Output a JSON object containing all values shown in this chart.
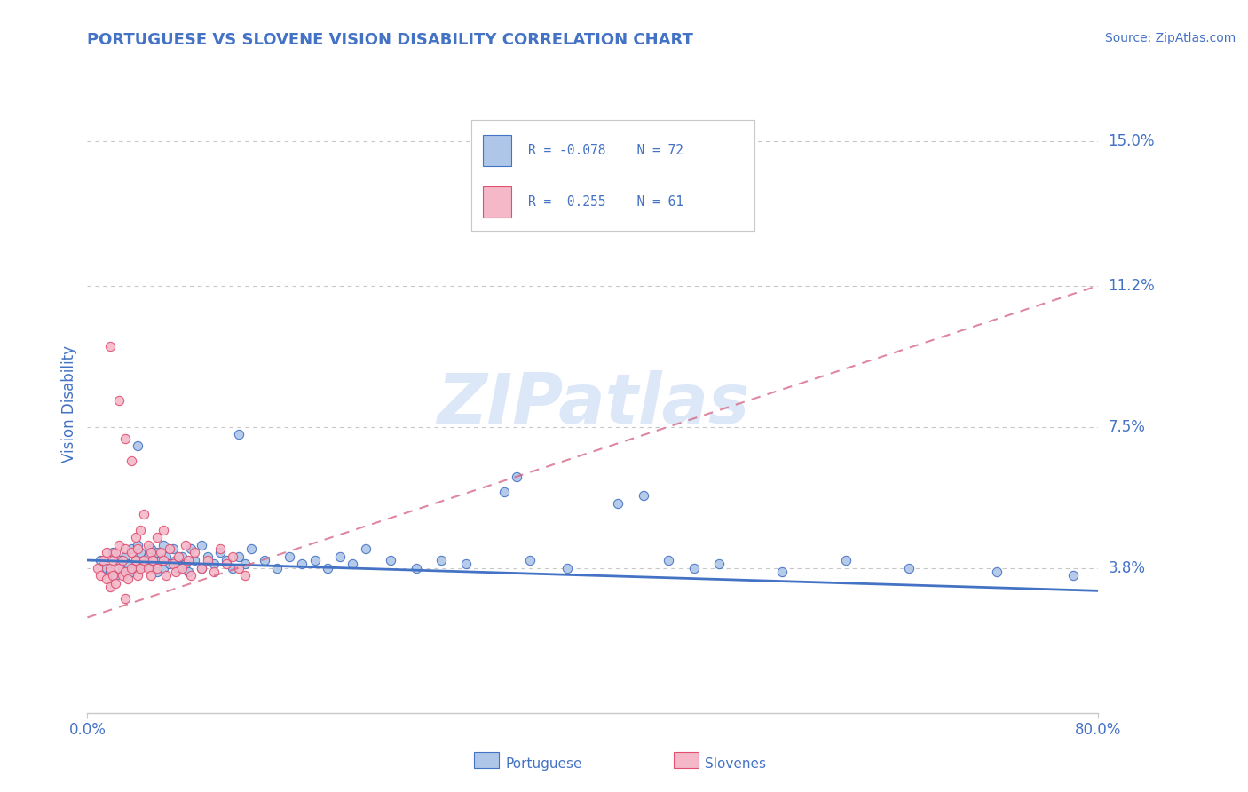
{
  "title": "PORTUGUESE VS SLOVENE VISION DISABILITY CORRELATION CHART",
  "source_text": "Source: ZipAtlas.com",
  "ylabel": "Vision Disability",
  "xlim": [
    0.0,
    0.8
  ],
  "ylim": [
    0.0,
    0.162
  ],
  "xtick_vals": [
    0.0,
    0.8
  ],
  "xtick_labels": [
    "0.0%",
    "80.0%"
  ],
  "ytick_vals": [
    0.038,
    0.075,
    0.112,
    0.15
  ],
  "ytick_labels": [
    "3.8%",
    "7.5%",
    "11.2%",
    "15.0%"
  ],
  "portuguese_fill": "#aec6e8",
  "portuguese_edge": "#4472c4",
  "slovene_fill": "#f4b8c8",
  "slovene_edge": "#e05070",
  "portuguese_line_color": "#4472c4",
  "slovene_line_color": "#d46080",
  "grid_color": "#c8c8c8",
  "title_color": "#4472c4",
  "tick_label_color": "#4472c4",
  "watermark_text": "ZIPatlas",
  "watermark_color": "#dce8f8",
  "legend_R1": "R = -0.078",
  "legend_N1": "N = 72",
  "legend_R2": "R =  0.255",
  "legend_N2": "N = 61",
  "port_trend_x0": 0.0,
  "port_trend_y0": 0.04,
  "port_trend_x1": 0.8,
  "port_trend_y1": 0.032,
  "slov_trend_x0": 0.0,
  "slov_trend_y0": 0.025,
  "slov_trend_x1": 0.8,
  "slov_trend_y1": 0.112,
  "portuguese_scatter": [
    [
      0.01,
      0.04
    ],
    [
      0.015,
      0.038
    ],
    [
      0.018,
      0.037
    ],
    [
      0.02,
      0.042
    ],
    [
      0.022,
      0.036
    ],
    [
      0.025,
      0.04
    ],
    [
      0.028,
      0.038
    ],
    [
      0.03,
      0.041
    ],
    [
      0.032,
      0.039
    ],
    [
      0.035,
      0.037
    ],
    [
      0.035,
      0.043
    ],
    [
      0.038,
      0.04
    ],
    [
      0.04,
      0.038
    ],
    [
      0.04,
      0.044
    ],
    [
      0.042,
      0.042
    ],
    [
      0.045,
      0.039
    ],
    [
      0.048,
      0.041
    ],
    [
      0.05,
      0.038
    ],
    [
      0.05,
      0.043
    ],
    [
      0.052,
      0.04
    ],
    [
      0.055,
      0.037
    ],
    [
      0.055,
      0.042
    ],
    [
      0.058,
      0.04
    ],
    [
      0.06,
      0.038
    ],
    [
      0.06,
      0.044
    ],
    [
      0.062,
      0.041
    ],
    [
      0.065,
      0.039
    ],
    [
      0.068,
      0.043
    ],
    [
      0.07,
      0.04
    ],
    [
      0.072,
      0.038
    ],
    [
      0.075,
      0.041
    ],
    [
      0.078,
      0.039
    ],
    [
      0.08,
      0.037
    ],
    [
      0.082,
      0.043
    ],
    [
      0.085,
      0.04
    ],
    [
      0.09,
      0.038
    ],
    [
      0.09,
      0.044
    ],
    [
      0.095,
      0.041
    ],
    [
      0.1,
      0.039
    ],
    [
      0.105,
      0.042
    ],
    [
      0.11,
      0.04
    ],
    [
      0.115,
      0.038
    ],
    [
      0.12,
      0.041
    ],
    [
      0.125,
      0.039
    ],
    [
      0.13,
      0.043
    ],
    [
      0.14,
      0.04
    ],
    [
      0.15,
      0.038
    ],
    [
      0.16,
      0.041
    ],
    [
      0.17,
      0.039
    ],
    [
      0.18,
      0.04
    ],
    [
      0.19,
      0.038
    ],
    [
      0.2,
      0.041
    ],
    [
      0.21,
      0.039
    ],
    [
      0.22,
      0.043
    ],
    [
      0.24,
      0.04
    ],
    [
      0.26,
      0.038
    ],
    [
      0.28,
      0.04
    ],
    [
      0.3,
      0.039
    ],
    [
      0.33,
      0.058
    ],
    [
      0.34,
      0.062
    ],
    [
      0.35,
      0.04
    ],
    [
      0.38,
      0.038
    ],
    [
      0.42,
      0.055
    ],
    [
      0.44,
      0.057
    ],
    [
      0.46,
      0.04
    ],
    [
      0.48,
      0.038
    ],
    [
      0.5,
      0.039
    ],
    [
      0.55,
      0.037
    ],
    [
      0.6,
      0.04
    ],
    [
      0.65,
      0.038
    ],
    [
      0.72,
      0.037
    ],
    [
      0.78,
      0.036
    ],
    [
      0.12,
      0.073
    ],
    [
      0.04,
      0.07
    ]
  ],
  "slovene_scatter": [
    [
      0.008,
      0.038
    ],
    [
      0.01,
      0.036
    ],
    [
      0.012,
      0.04
    ],
    [
      0.015,
      0.035
    ],
    [
      0.015,
      0.042
    ],
    [
      0.018,
      0.033
    ],
    [
      0.018,
      0.038
    ],
    [
      0.02,
      0.036
    ],
    [
      0.02,
      0.04
    ],
    [
      0.022,
      0.034
    ],
    [
      0.022,
      0.042
    ],
    [
      0.025,
      0.038
    ],
    [
      0.025,
      0.044
    ],
    [
      0.028,
      0.036
    ],
    [
      0.028,
      0.04
    ],
    [
      0.03,
      0.037
    ],
    [
      0.03,
      0.043
    ],
    [
      0.032,
      0.035
    ],
    [
      0.035,
      0.038
    ],
    [
      0.035,
      0.042
    ],
    [
      0.038,
      0.04
    ],
    [
      0.038,
      0.046
    ],
    [
      0.04,
      0.036
    ],
    [
      0.04,
      0.043
    ],
    [
      0.042,
      0.038
    ],
    [
      0.042,
      0.048
    ],
    [
      0.045,
      0.04
    ],
    [
      0.045,
      0.052
    ],
    [
      0.048,
      0.038
    ],
    [
      0.048,
      0.044
    ],
    [
      0.05,
      0.036
    ],
    [
      0.05,
      0.042
    ],
    [
      0.052,
      0.04
    ],
    [
      0.055,
      0.038
    ],
    [
      0.055,
      0.046
    ],
    [
      0.058,
      0.042
    ],
    [
      0.06,
      0.04
    ],
    [
      0.06,
      0.048
    ],
    [
      0.062,
      0.036
    ],
    [
      0.065,
      0.043
    ],
    [
      0.068,
      0.039
    ],
    [
      0.07,
      0.037
    ],
    [
      0.072,
      0.041
    ],
    [
      0.075,
      0.038
    ],
    [
      0.078,
      0.044
    ],
    [
      0.08,
      0.04
    ],
    [
      0.082,
      0.036
    ],
    [
      0.085,
      0.042
    ],
    [
      0.09,
      0.038
    ],
    [
      0.095,
      0.04
    ],
    [
      0.1,
      0.037
    ],
    [
      0.105,
      0.043
    ],
    [
      0.11,
      0.039
    ],
    [
      0.115,
      0.041
    ],
    [
      0.12,
      0.038
    ],
    [
      0.125,
      0.036
    ],
    [
      0.018,
      0.096
    ],
    [
      0.025,
      0.082
    ],
    [
      0.03,
      0.072
    ],
    [
      0.035,
      0.066
    ],
    [
      0.03,
      0.03
    ]
  ]
}
